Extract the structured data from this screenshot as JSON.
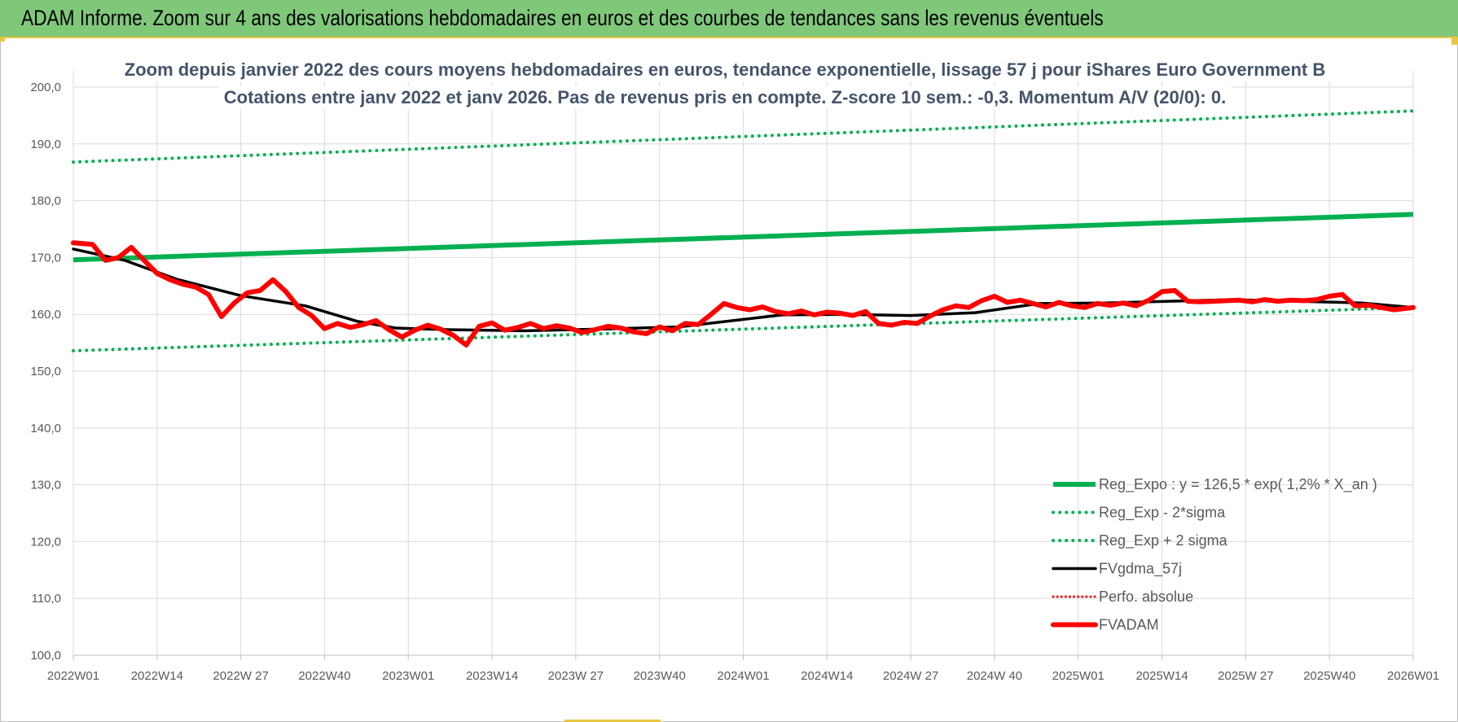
{
  "header": {
    "title": "ADAM Informe. Zoom sur 4 ans des valorisations hebdomadaires en euros et des courbes de tendances sans les revenus éventuels"
  },
  "colors": {
    "banner": "#7fc87a",
    "accent": "#e8c640",
    "reg_expo": "#00b050",
    "fvgdma": "#000000",
    "fvadam": "#ff0000",
    "title_text": "#44546a"
  },
  "chart_data": {
    "type": "line",
    "title_lines": [
      "Zoom depuis janvier 2022 des cours moyens hebdomadaires en euros, tendance exponentielle, lissage 57 j pour iShares Euro Government B",
      "Cotations entre janv 2022 et janv 2026. Pas de revenus pris en compte. Z-score 10 sem.: -0,3. Momentum A/V (20/0): 0."
    ],
    "ylim": [
      100,
      200
    ],
    "y_ticks": [
      "100,0",
      "110,0",
      "120,0",
      "130,0",
      "140,0",
      "150,0",
      "160,0",
      "170,0",
      "180,0",
      "190,0",
      "200,0"
    ],
    "x_ticks": [
      "2022W01",
      "2022W14",
      "2022W 27",
      "2022W40",
      "2023W01",
      "2023W14",
      "2023W 27",
      "2023W40",
      "2024W01",
      "2024W14",
      "2024W 27",
      "2024W 40",
      "2025W01",
      "2025W14",
      "2025W 27",
      "2025W40",
      "2026W01"
    ],
    "x_range_weeks": [
      0,
      208
    ],
    "grid": true,
    "legend_position": "bottom-right",
    "legend": [
      {
        "label": "Reg_Expo : y = 126,5 * exp( 1,2% *  X_an )",
        "style": "solid-green-thick"
      },
      {
        "label": "Reg_Exp - 2*sigma",
        "style": "dotted-green"
      },
      {
        "label": "Reg_Exp + 2 sigma",
        "style": "dotted-green"
      },
      {
        "label": "FVgdma_57j",
        "style": "solid-black"
      },
      {
        "label": "Perfo. absolue",
        "style": "dotted-red"
      },
      {
        "label": "FVADAM",
        "style": "solid-red-thick"
      }
    ],
    "series": [
      {
        "name": "Reg_Expo : y = 126,5 * exp( 1,2% *  X_an )",
        "x": [
          0,
          208
        ],
        "values": [
          169.6,
          177.6
        ]
      },
      {
        "name": "Reg_Exp - 2*sigma",
        "x": [
          0,
          208
        ],
        "values": [
          153.6,
          161.2
        ]
      },
      {
        "name": "Reg_Exp + 2 sigma",
        "x": [
          0,
          208
        ],
        "values": [
          186.8,
          195.8
        ]
      },
      {
        "name": "FVgdma_57j",
        "x": [
          0,
          8,
          16,
          26,
          36,
          44,
          50,
          58,
          70,
          82,
          94,
          110,
          120,
          130,
          140,
          150,
          160,
          170,
          180,
          190,
          200,
          208
        ],
        "values": [
          171.5,
          169.5,
          166.2,
          163.3,
          161.5,
          158.8,
          157.6,
          157.3,
          157.1,
          157.4,
          157.8,
          159.9,
          160.0,
          159.8,
          160.3,
          161.9,
          162.0,
          162.3,
          162.6,
          162.3,
          162.0,
          161.2
        ]
      },
      {
        "name": "FVADAM",
        "x": [
          0,
          3,
          5,
          7,
          9,
          11,
          13,
          15,
          17,
          19,
          21,
          23,
          25,
          27,
          29,
          31,
          33,
          35,
          37,
          39,
          41,
          43,
          45,
          47,
          49,
          51,
          53,
          55,
          57,
          59,
          61,
          63,
          65,
          67,
          69,
          71,
          73,
          75,
          77,
          79,
          81,
          83,
          85,
          87,
          89,
          91,
          93,
          95,
          97,
          99,
          101,
          103,
          105,
          107,
          109,
          111,
          113,
          115,
          117,
          119,
          121,
          123,
          125,
          127,
          129,
          131,
          133,
          135,
          137,
          139,
          141,
          143,
          145,
          147,
          149,
          151,
          153,
          155,
          157,
          159,
          161,
          163,
          165,
          167,
          169,
          171,
          173,
          175,
          177,
          179,
          181,
          183,
          185,
          187,
          189,
          191,
          193,
          195,
          197,
          199,
          201,
          203,
          205,
          208
        ],
        "values": [
          172.6,
          172.3,
          169.5,
          170.0,
          171.8,
          169.5,
          167.2,
          166.1,
          165.3,
          164.8,
          163.5,
          159.6,
          162.0,
          163.8,
          164.2,
          166.1,
          164.0,
          161.2,
          159.8,
          157.5,
          158.4,
          157.7,
          158.2,
          158.9,
          157.3,
          156.0,
          157.2,
          158.1,
          157.4,
          156.3,
          154.6,
          157.9,
          158.5,
          157.2,
          157.7,
          158.4,
          157.5,
          158.0,
          157.6,
          156.8,
          157.3,
          157.9,
          157.6,
          156.9,
          156.6,
          157.8,
          157.1,
          158.4,
          158.2,
          160.0,
          161.9,
          161.2,
          160.8,
          161.3,
          160.5,
          160.1,
          160.6,
          159.9,
          160.4,
          160.2,
          159.8,
          160.5,
          158.4,
          158.1,
          158.6,
          158.4,
          159.7,
          160.8,
          161.5,
          161.2,
          162.4,
          163.2,
          162.1,
          162.5,
          161.9,
          161.3,
          162.1,
          161.5,
          161.2,
          161.9,
          161.6,
          162.0,
          161.5,
          162.5,
          164.0,
          164.2,
          162.3,
          162.2,
          162.3,
          162.4,
          162.5,
          162.2,
          162.6,
          162.3,
          162.5,
          162.4,
          162.6,
          163.2,
          163.5,
          161.5,
          161.6,
          161.2,
          160.8,
          161.2
        ]
      },
      {
        "name": "Perfo. absolue",
        "x": [],
        "values": []
      }
    ]
  }
}
